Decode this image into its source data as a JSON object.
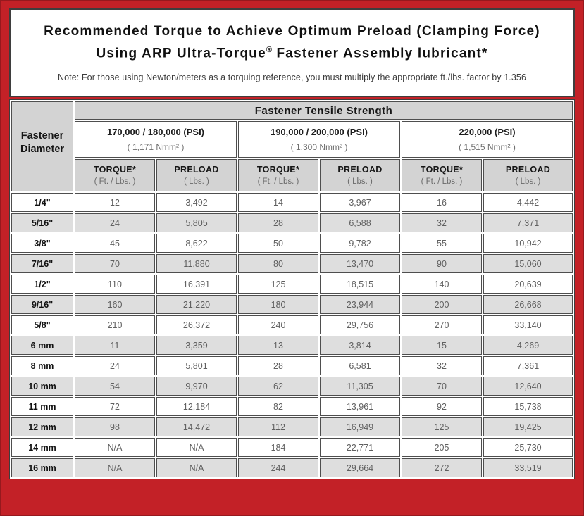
{
  "title": {
    "line1": "Recommended Torque to Achieve Optimum Preload (Clamping Force)",
    "line2_prefix": "Using ARP Ultra-Torque",
    "line2_reg": "®",
    "line2_suffix": " Fastener Assembly lubricant*",
    "note": "Note: For those using Newton/meters as a torquing reference, you must multiply the appropriate ft./lbs. factor by 1.356"
  },
  "table": {
    "corner_line1": "Fastener",
    "corner_line2": "Diameter",
    "top_header": "Fastener Tensile Strength",
    "strength_groups": [
      {
        "psi": "170,000 / 180,000 (PSI)",
        "nmm": "( 1,171 Nmm² )"
      },
      {
        "psi": "190,000 / 200,000 (PSI)",
        "nmm": "( 1,300 Nmm² )"
      },
      {
        "psi": "220,000 (PSI)",
        "nmm": "( 1,515 Nmm² )"
      }
    ],
    "col_headers": [
      {
        "label": "TORQUE*",
        "unit": "( Ft. / Lbs. )"
      },
      {
        "label": "PRELOAD",
        "unit": "( Lbs. )"
      },
      {
        "label": "TORQUE*",
        "unit": "( Ft. / Lbs. )"
      },
      {
        "label": "PRELOAD",
        "unit": "( Lbs. )"
      },
      {
        "label": "TORQUE*",
        "unit": "( Ft. / Lbs. )"
      },
      {
        "label": "PRELOAD",
        "unit": "( Lbs. )"
      }
    ],
    "rows": [
      {
        "diameter": "1/4\"",
        "values": [
          "12",
          "3,492",
          "14",
          "3,967",
          "16",
          "4,442"
        ]
      },
      {
        "diameter": "5/16\"",
        "values": [
          "24",
          "5,805",
          "28",
          "6,588",
          "32",
          "7,371"
        ]
      },
      {
        "diameter": "3/8\"",
        "values": [
          "45",
          "8,622",
          "50",
          "9,782",
          "55",
          "10,942"
        ]
      },
      {
        "diameter": "7/16\"",
        "values": [
          "70",
          "11,880",
          "80",
          "13,470",
          "90",
          "15,060"
        ]
      },
      {
        "diameter": "1/2\"",
        "values": [
          "110",
          "16,391",
          "125",
          "18,515",
          "140",
          "20,639"
        ]
      },
      {
        "diameter": "9/16\"",
        "values": [
          "160",
          "21,220",
          "180",
          "23,944",
          "200",
          "26,668"
        ]
      },
      {
        "diameter": "5/8\"",
        "values": [
          "210",
          "26,372",
          "240",
          "29,756",
          "270",
          "33,140"
        ]
      },
      {
        "diameter": "6 mm",
        "values": [
          "11",
          "3,359",
          "13",
          "3,814",
          "15",
          "4,269"
        ]
      },
      {
        "diameter": "8 mm",
        "values": [
          "24",
          "5,801",
          "28",
          "6,581",
          "32",
          "7,361"
        ]
      },
      {
        "diameter": "10 mm",
        "values": [
          "54",
          "9,970",
          "62",
          "11,305",
          "70",
          "12,640"
        ]
      },
      {
        "diameter": "11 mm",
        "values": [
          "72",
          "12,184",
          "82",
          "13,961",
          "92",
          "15,738"
        ]
      },
      {
        "diameter": "12 mm",
        "values": [
          "98",
          "14,472",
          "112",
          "16,949",
          "125",
          "19,425"
        ]
      },
      {
        "diameter": "14 mm",
        "values": [
          "N/A",
          "N/A",
          "184",
          "22,771",
          "205",
          "25,730"
        ]
      },
      {
        "diameter": "16 mm",
        "values": [
          "N/A",
          "N/A",
          "244",
          "29,664",
          "272",
          "33,519"
        ]
      }
    ]
  },
  "colors": {
    "border_red": "#c32127",
    "border_red_dark": "#96191e",
    "frame_dark": "#3e3e3e",
    "header_gray": "#d3d3d3",
    "stripe_gray": "#dedede",
    "value_text": "#606060"
  }
}
